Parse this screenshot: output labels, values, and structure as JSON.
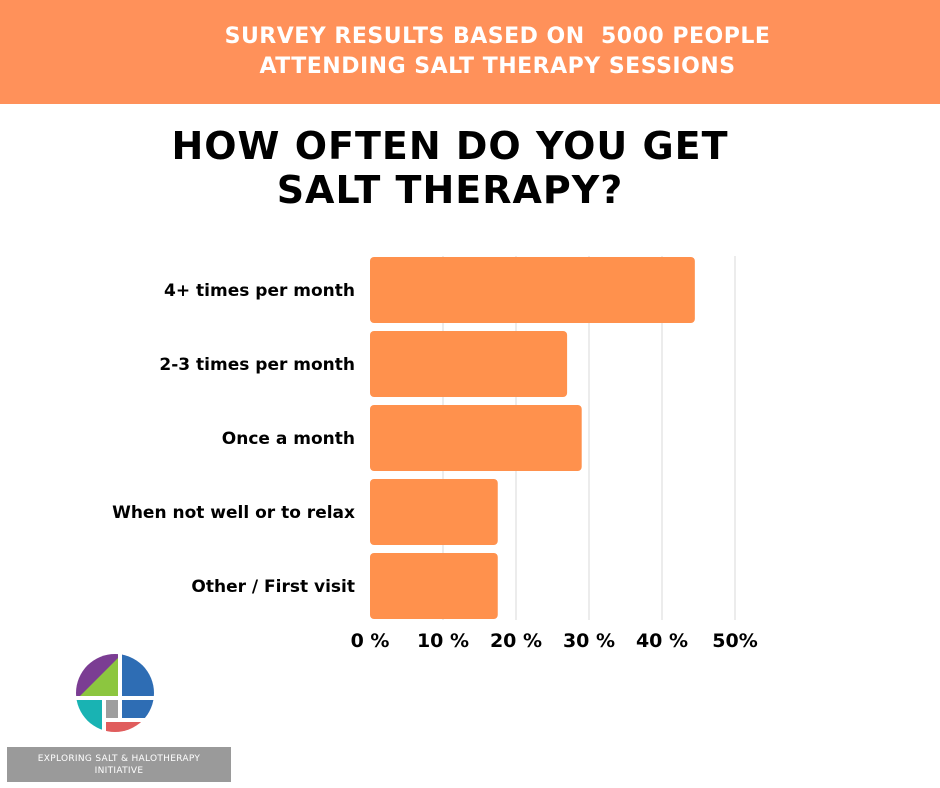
{
  "header": {
    "line1": "SURVEY RESULTS BASED ON  5000 PEOPLE",
    "line2": "ATTENDING SALT THERAPY SESSIONS"
  },
  "chart_data": {
    "type": "bar",
    "orientation": "horizontal",
    "title_lines": [
      "HOW OFTEN DO YOU GET",
      "SALT THERAPY?"
    ],
    "categories": [
      "4+ times per month",
      "2-3 times per month",
      "Once a month",
      "When not well or to relax",
      "Other / First visit"
    ],
    "values": [
      44.5,
      27,
      29,
      17.5,
      17.5
    ],
    "xlim": [
      0,
      50
    ],
    "ticks": [
      0,
      10,
      20,
      30,
      40,
      50
    ],
    "tick_labels": [
      "0 %",
      "10 %",
      "20 %",
      "30 %",
      "40 %",
      "50%"
    ],
    "grid": true,
    "bar_color": "#ff914d",
    "grid_color": "#d9d9d9"
  },
  "org": {
    "name_line1": "EXPLORING SALT & HALOTHERAPY",
    "name_line2": "INITIATIVE"
  },
  "colors": {
    "banner": "#ff915a",
    "logo_purple": "#7b3d93",
    "logo_green": "#8cc63f",
    "logo_blue": "#2e6db4",
    "logo_teal": "#19b3b3",
    "logo_gray": "#9e9e9e",
    "logo_red": "#e05d5d"
  }
}
